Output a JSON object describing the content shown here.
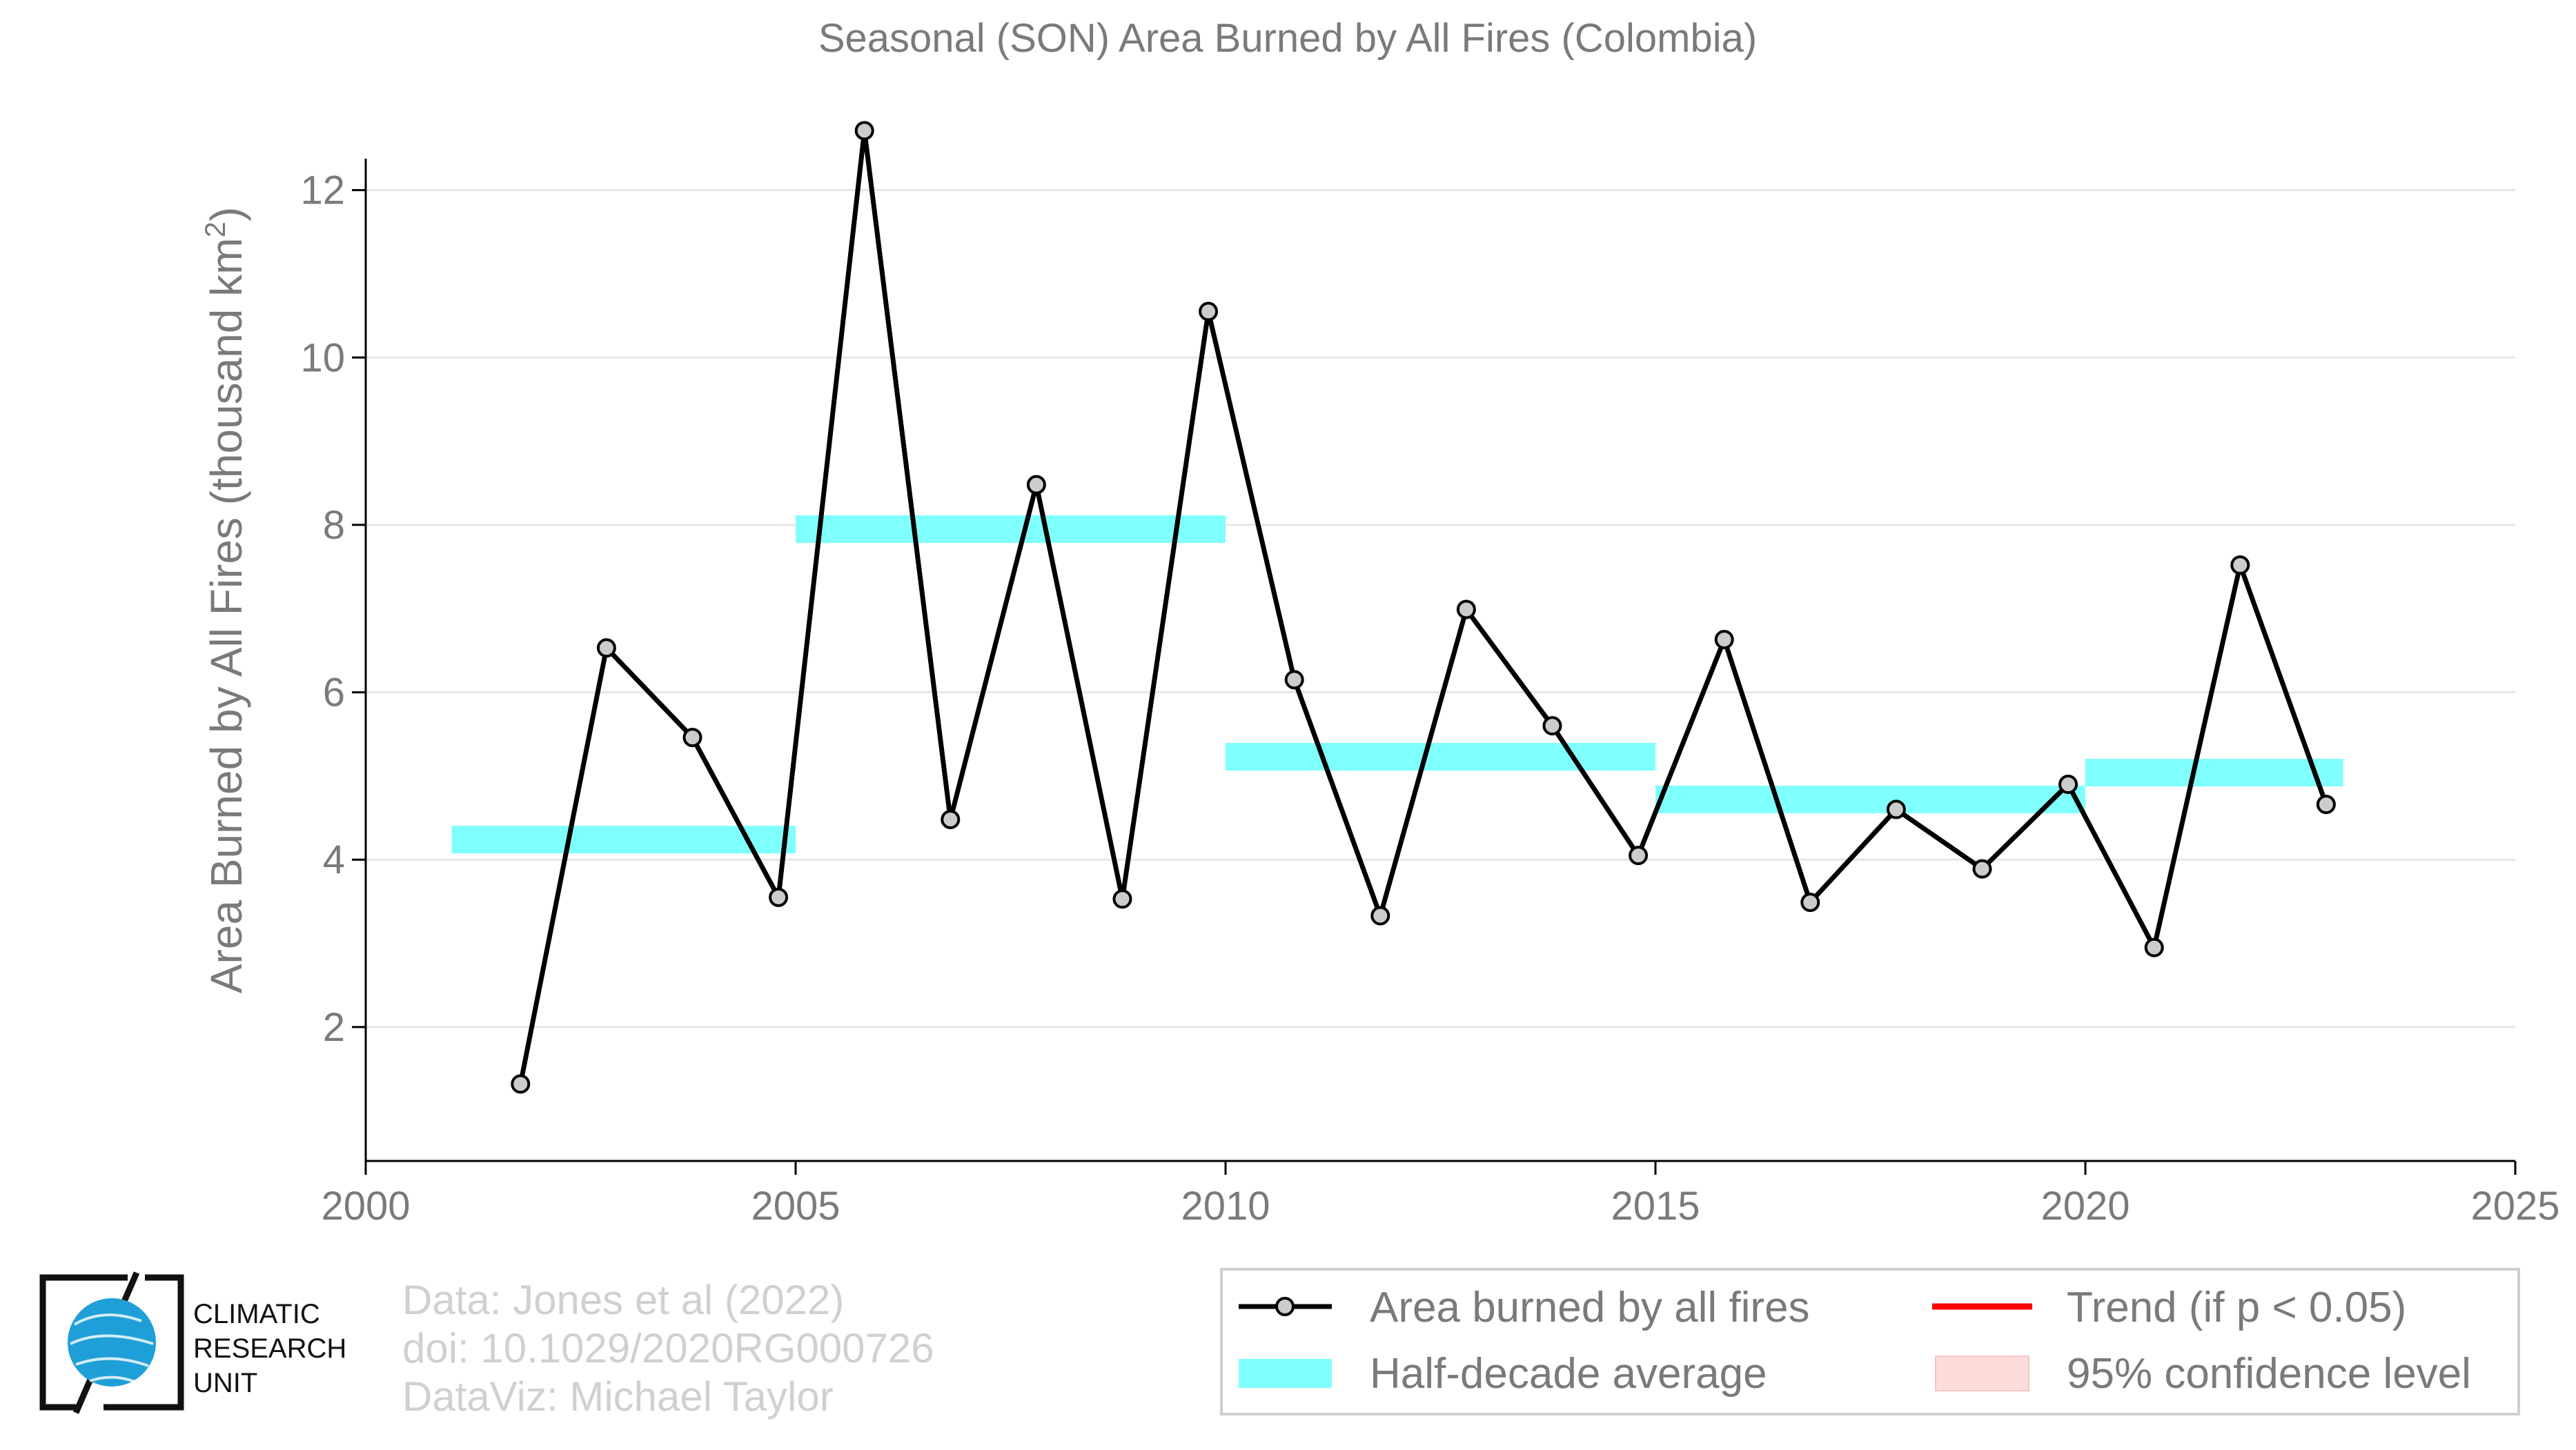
{
  "colors": {
    "line": "#000000",
    "marker_fill": "#cccccc",
    "half_decade": "#80ffff",
    "trend": "#ff0000",
    "confidence": "#ffdcdc",
    "grid": "#e6e6e6",
    "axis": "#000000",
    "text": "#7a7a7a",
    "credit": "#d0d0d0",
    "logo_globe": "#1f9fd8"
  },
  "chart_data": {
    "type": "line",
    "title": "Seasonal (SON) Area Burned by All Fires (Colombia)",
    "xlabel": "",
    "ylabel": "Area Burned by All Fires (thousand km",
    "ylabel_superscript": "2",
    "ylabel_close": ")",
    "xlim": [
      2000,
      2025
    ],
    "ylim": [
      0.4,
      13.2
    ],
    "xticks": [
      2000,
      2005,
      2010,
      2015,
      2020,
      2025
    ],
    "yticks": [
      2,
      4,
      6,
      8,
      10,
      12
    ],
    "grid": "horizontal",
    "legend_position": "bottom-right",
    "series": [
      {
        "name": "Area burned by all fires",
        "style": "line-with-markers",
        "x": [
          2001.8,
          2002.8,
          2003.8,
          2004.8,
          2005.8,
          2006.8,
          2007.8,
          2008.8,
          2009.8,
          2010.8,
          2011.8,
          2012.8,
          2013.8,
          2014.8,
          2015.8,
          2016.8,
          2017.8,
          2018.8,
          2019.8,
          2020.8,
          2021.8,
          2022.8
        ],
        "y": [
          1.32,
          6.53,
          5.46,
          3.55,
          12.71,
          4.48,
          8.48,
          3.53,
          10.55,
          6.15,
          3.33,
          6.99,
          5.6,
          4.05,
          6.63,
          3.49,
          4.6,
          3.89,
          4.9,
          2.95,
          7.52,
          4.66
        ]
      },
      {
        "name": "Half-decade average",
        "style": "band",
        "segments": [
          {
            "x0": 2001,
            "x1": 2005,
            "y": 4.24
          },
          {
            "x0": 2005,
            "x1": 2010,
            "y": 7.95
          },
          {
            "x0": 2010,
            "x1": 2015,
            "y": 5.23
          },
          {
            "x0": 2015,
            "x1": 2020,
            "y": 4.72
          },
          {
            "x0": 2020,
            "x1": 2023,
            "y": 5.04
          }
        ]
      }
    ]
  },
  "legend": {
    "items": [
      {
        "label": "Area burned by all fires",
        "symbol": "line-marker"
      },
      {
        "label": "Trend (if p < 0.05)",
        "symbol": "red-line"
      },
      {
        "label": "Half-decade average",
        "symbol": "cyan-band"
      },
      {
        "label": "95% confidence level",
        "symbol": "pink-box"
      }
    ]
  },
  "credits": {
    "line1": "Data: Jones et al (2022)",
    "line2": "doi: 10.1029/2020RG000726",
    "line3": "DataViz: Michael Taylor"
  },
  "logo": {
    "line1": "CLIMATIC",
    "line2": "RESEARCH",
    "line3": "UNIT"
  }
}
